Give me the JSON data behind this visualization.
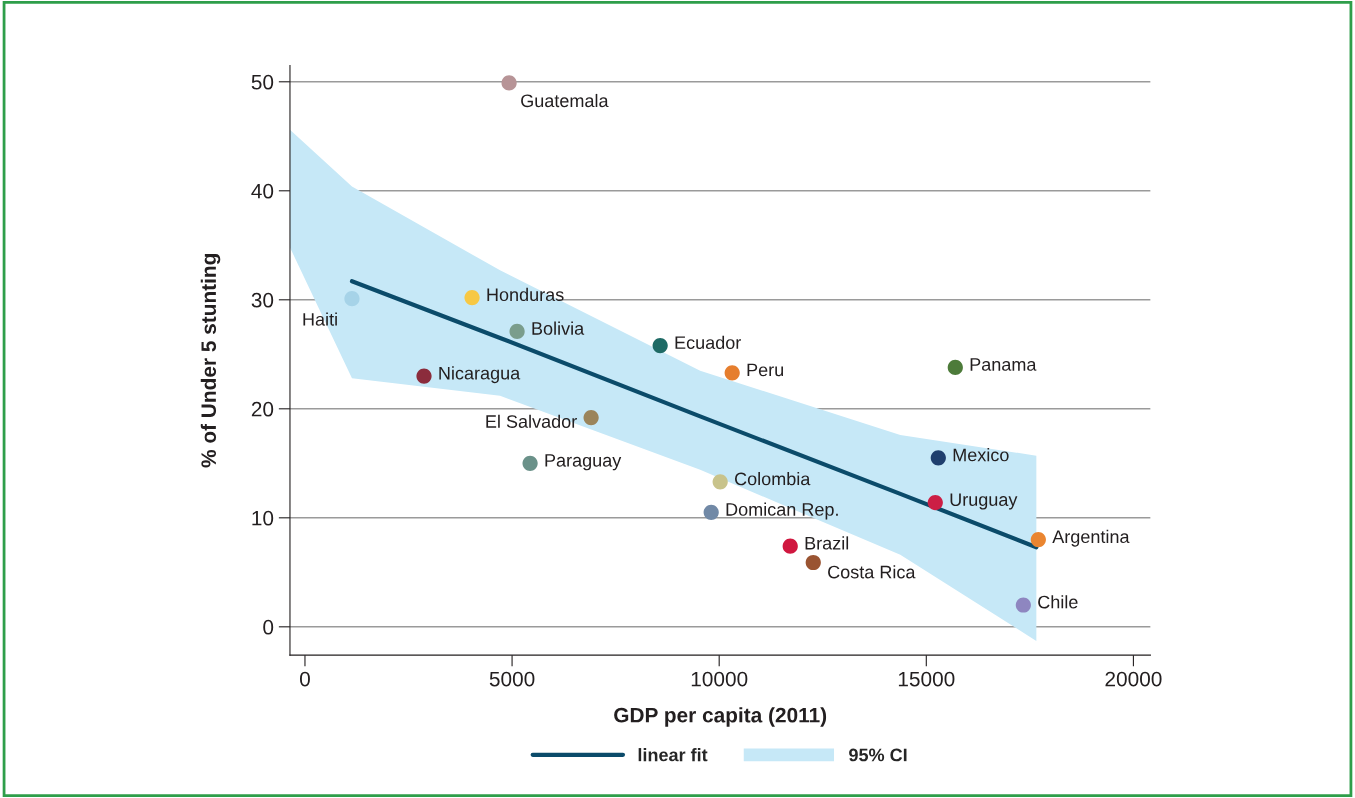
{
  "chart_data": {
    "type": "scatter",
    "xlabel": "GDP per capita (2011)",
    "ylabel": "% of Under 5 stunting",
    "xlim": [
      -362,
      20410
    ],
    "ylim": [
      -2.6,
      51.5
    ],
    "xticks": [
      0,
      5000,
      10000,
      15000,
      20000
    ],
    "yticks": [
      0,
      10,
      20,
      30,
      40,
      50
    ],
    "grid": "y",
    "legend": "bottom",
    "series": [
      {
        "type": "line",
        "name": "linear fit",
        "color": "#0b4b6a",
        "line_style": "solid",
        "marker": "none",
        "x": [
          -362,
          1135,
          4710,
          9541,
          14372,
          17657
        ],
        "values": [
          null,
          31.7,
          26.5,
          19.3,
          12.2,
          7.3
        ],
        "lower": [
          34.8,
          22.8,
          21.2,
          14.4,
          6.6,
          -1.3
        ],
        "upper": [
          45.6,
          40.4,
          32.7,
          23.5,
          17.6,
          15.7
        ]
      },
      {
        "marker": "circle",
        "x": [
          4928,
          4034,
          1135,
          5121,
          8575,
          10314,
          15700,
          2874,
          6908,
          5435,
          15290,
          10024,
          15217,
          9807,
          17705,
          11715,
          12271,
          17343
        ],
        "values": [
          49.9,
          30.2,
          30.1,
          27.1,
          25.8,
          23.3,
          23.8,
          23.0,
          19.2,
          15.0,
          15.5,
          13.3,
          11.4,
          10.5,
          8.0,
          7.4,
          5.9,
          2.0
        ],
        "colors": [
          "#b79497",
          "#f7c844",
          "#a6d3e8",
          "#7a9d8c",
          "#1e6a65",
          "#e67e2e",
          "#4d7b3a",
          "#8b2c3c",
          "#9b845a",
          "#6a9189",
          "#1f3f6e",
          "#c8c38b",
          "#cc1f45",
          "#7189a6",
          "#ea8530",
          "#d0173f",
          "#9a5432",
          "#8e86c0"
        ]
      }
    ],
    "annotations": [
      "95% CI",
      {
        "text": "Guatemala",
        "x": 4928,
        "y": 49.9
      },
      {
        "text": "Honduras",
        "x": 4034,
        "y": 30.2
      },
      {
        "text": "Haiti",
        "x": 1135,
        "y": 30.1
      },
      {
        "text": "Bolivia",
        "x": 5121,
        "y": 27.1
      },
      {
        "text": "Ecuador",
        "x": 8575,
        "y": 25.8
      },
      {
        "text": "Peru",
        "x": 10314,
        "y": 23.3
      },
      {
        "text": "Panama",
        "x": 15700,
        "y": 23.8
      },
      {
        "text": "Nicaragua",
        "x": 2874,
        "y": 23.0
      },
      {
        "text": "El Salvador",
        "x": 6908,
        "y": 19.2
      },
      {
        "text": "Paraguay",
        "x": 5435,
        "y": 15.0
      },
      {
        "text": "Mexico",
        "x": 15290,
        "y": 15.5
      },
      {
        "text": "Colombia",
        "x": 10024,
        "y": 13.3
      },
      {
        "text": "Uruguay",
        "x": 15217,
        "y": 11.4
      },
      {
        "text": "Domican Rep.",
        "x": 9807,
        "y": 10.5
      },
      {
        "text": "Argentina",
        "x": 17705,
        "y": 8.0
      },
      {
        "text": "Brazil",
        "x": 11715,
        "y": 7.4
      },
      {
        "text": "Costa Rica",
        "x": 12271,
        "y": 5.9
      },
      {
        "text": "Chile",
        "x": 17343,
        "y": 2.0
      }
    ]
  }
}
